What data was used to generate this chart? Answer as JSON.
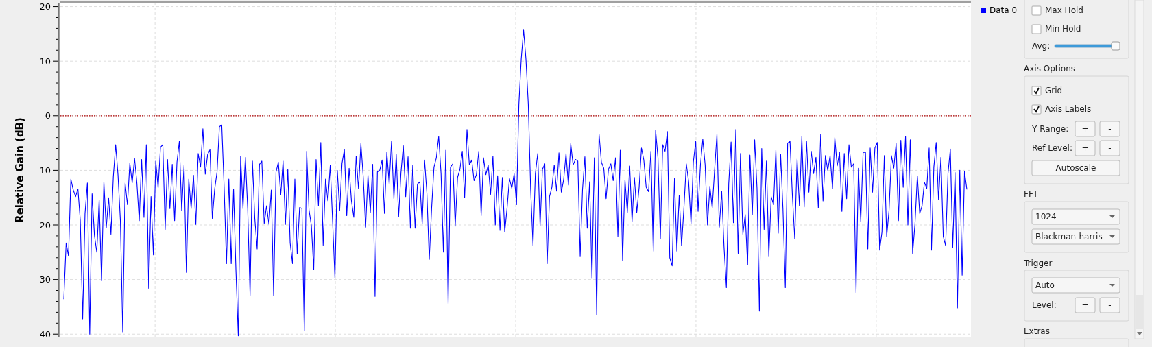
{
  "chart_data": [
    {
      "type": "line",
      "ylabel": "Relative Gain (dB)",
      "ylim": [
        -40.6,
        20.7
      ],
      "yticks": [
        -40,
        -30,
        -20,
        -10,
        0,
        10,
        20
      ],
      "grid": true,
      "legend": "top right",
      "tick_labels": "y",
      "marker": "none",
      "line_style": "solid",
      "ref_lines": [
        {
          "axis": "y",
          "value": 0,
          "color": "#b00000",
          "line_style": "dotted"
        }
      ],
      "categories": [
        null,
        null,
        null,
        null,
        null,
        null,
        null,
        null,
        null,
        null,
        null,
        null,
        null,
        null,
        null,
        null,
        null,
        null,
        null,
        null,
        null,
        null,
        null,
        null,
        null,
        null,
        null,
        null,
        null,
        null,
        null,
        null,
        null,
        null,
        null,
        null,
        null,
        null,
        null,
        null,
        null,
        null,
        null,
        null,
        null,
        null,
        null,
        null,
        null,
        null,
        null,
        null,
        null,
        null,
        null,
        null,
        null,
        null,
        null,
        null,
        null,
        null,
        null,
        null,
        null,
        null,
        null,
        null,
        null,
        null,
        null,
        null,
        null,
        null,
        null,
        null,
        null,
        null,
        null,
        null,
        null,
        null,
        null,
        null,
        null,
        null,
        null,
        null,
        null,
        null,
        null,
        null,
        null,
        null,
        null,
        null,
        null,
        null,
        null,
        null,
        null,
        null,
        null,
        null,
        null,
        null,
        null,
        null,
        null,
        null,
        null,
        null,
        null,
        null,
        null,
        null,
        null,
        null,
        null,
        null,
        null,
        null,
        null,
        null,
        null,
        null,
        null,
        null,
        null,
        null,
        null,
        null,
        null,
        null,
        null,
        null,
        null,
        null,
        null,
        null,
        null,
        null,
        null,
        null,
        null,
        null,
        null,
        null,
        null,
        null,
        null,
        null,
        null,
        null,
        null,
        null,
        null,
        null,
        null,
        null,
        null,
        null,
        null,
        null,
        null,
        null,
        null,
        null,
        null,
        null,
        null,
        null,
        null,
        null,
        null,
        null,
        null,
        null,
        null,
        null,
        null,
        null,
        null,
        null,
        null,
        null,
        null,
        null,
        null,
        null,
        null,
        null,
        null,
        null,
        null,
        null,
        null,
        null,
        null,
        null,
        null,
        null,
        null,
        null,
        null,
        null,
        null,
        null,
        null,
        null,
        null,
        null,
        null,
        null,
        null,
        null,
        null,
        null,
        null,
        null,
        null,
        null,
        null,
        null,
        null,
        null,
        null,
        null,
        null,
        null,
        null,
        null,
        null,
        null,
        null,
        null,
        null,
        null,
        null,
        null,
        null,
        null,
        null,
        null,
        null,
        null,
        null,
        null,
        null,
        null,
        null,
        null,
        null,
        null,
        null,
        null,
        null,
        null,
        null,
        null,
        null,
        null,
        null,
        null,
        null,
        null,
        null,
        null,
        null,
        null,
        null,
        null,
        null,
        null,
        null,
        null,
        null,
        null,
        null,
        null,
        null,
        null,
        null,
        null,
        null,
        null,
        null,
        null,
        null,
        null,
        null,
        null,
        null,
        null,
        null,
        null,
        null,
        null,
        null,
        null,
        null,
        null,
        null,
        null,
        null,
        null,
        null,
        null,
        null,
        null,
        null,
        null,
        null,
        null,
        null,
        null,
        null,
        null,
        null,
        null,
        null,
        null,
        null,
        null,
        null,
        null,
        null,
        null,
        null,
        null,
        null,
        null,
        null,
        null,
        null,
        null,
        null,
        null,
        null,
        null,
        null,
        null,
        null,
        null,
        null,
        null,
        null,
        null,
        null,
        null,
        null,
        null,
        null,
        null,
        null,
        null,
        null,
        null,
        null,
        null,
        null,
        null,
        null,
        null,
        null,
        null,
        null,
        null,
        null,
        null,
        null,
        null,
        null,
        null,
        null,
        null,
        null,
        null,
        null,
        null,
        null,
        null,
        null,
        null
      ],
      "series": [
        {
          "name": "Data 0",
          "color": "#0000ff",
          "values": [
            -33.6,
            -23.3,
            -25.7,
            -11.6,
            -13.6,
            -14.8,
            -13.4,
            -19.2,
            -37.2,
            -17.9,
            -12.3,
            -40,
            -14.3,
            -21.9,
            -25,
            -15.4,
            -30.2,
            -12.1,
            -20.6,
            -15,
            -21.7,
            -11.2,
            -5.3,
            -10.9,
            -19.2,
            -39.6,
            -12.3,
            -16.3,
            -8.7,
            -12.3,
            -7.8,
            -12.3,
            -19.2,
            -8,
            -18.6,
            -5.3,
            -31.6,
            -14.8,
            -25.5,
            -8.3,
            -13.2,
            -5.8,
            -5.3,
            -20.8,
            -8,
            -17,
            -8.9,
            -19.2,
            -8.5,
            -4.7,
            -17.4,
            -9.1,
            -28.7,
            -11.6,
            -17,
            -10.9,
            -19.9,
            -6.9,
            -9.4,
            -2.4,
            -10.7,
            -7.1,
            -6.2,
            -18.8,
            -13.4,
            -10.3,
            -2,
            -1.7,
            -13,
            -27.1,
            -11.6,
            -27.1,
            -13.4,
            -28.2,
            -40.3,
            -7.4,
            -17,
            -7.6,
            -17,
            -32.9,
            -8.3,
            -18.8,
            -24.4,
            -8.9,
            -8.3,
            -19.7,
            -16.5,
            -19.9,
            -13.6,
            -32.9,
            -10.3,
            -8.5,
            -14.5,
            -8.3,
            -19.9,
            -9.8,
            -23.3,
            -27.1,
            -11.6,
            -25.3,
            -16.8,
            -17,
            -39.4,
            -6.5,
            -17.2,
            -20.1,
            -28.2,
            -8,
            -16.5,
            -4.9,
            -23.7,
            -11.6,
            -15.6,
            -9.1,
            -19.2,
            -29.8,
            -10,
            -17.4,
            -8.7,
            -6.2,
            -18.3,
            -9.6,
            -15.6,
            -18.6,
            -7.4,
            -13.4,
            -5.1,
            -11.2,
            -20.4,
            -10.9,
            -17.7,
            -8.9,
            -33.1,
            -10.3,
            -10,
            -8.1,
            -17.9,
            -6.7,
            -12.5,
            -4.7,
            -15.2,
            -7.1,
            -18.5,
            -10.4,
            -5.5,
            -14.8,
            -7.5,
            -20.6,
            -9,
            -20.6,
            -12.5,
            -12.1,
            -19.8,
            -8.1,
            -14.2,
            -26.3,
            -16.9,
            -9.4,
            -7.7,
            -3.8,
            -10.6,
            -25,
            -6.3,
            -34.4,
            -9.4,
            -8.8,
            -20.2,
            -11.3,
            -9.8,
            -6.5,
            -15,
            -2.5,
            -9,
            -8.1,
            -11.9,
            -10.8,
            -6.5,
            -18.3,
            -7.7,
            -10.8,
            -9,
            -14.4,
            -7.4,
            -20,
            -11,
            -21,
            -11.3,
            -21.3,
            -16.9,
            -11.5,
            -13.3,
            -10.6,
            -16.3,
            2.1,
            10.4,
            15.7,
            10.4,
            2.1,
            -13.5,
            -23.8,
            -10.6,
            -6.9,
            -20.2,
            -9.8,
            -8.8,
            -27.1,
            -14.8,
            -13.1,
            -9,
            -13.8,
            -6.8,
            -14,
            -11.7,
            -6.9,
            -12.7,
            -5.1,
            -9,
            -8,
            -8.3,
            -25.8,
            -13.5,
            -7.5,
            -20.6,
            -12.1,
            -29.8,
            -7.7,
            -36.5,
            -3.3,
            -8.5,
            -9.6,
            -15.2,
            -9.8,
            -8.8,
            -11.9,
            -7.7,
            -22.1,
            -6.3,
            -26.5,
            -11.7,
            -17.7,
            -9.2,
            -19.4,
            -11.3,
            -17.7,
            -13.1,
            -5.9,
            -8.1,
            -13.1,
            -13.9,
            -6.5,
            -24.8,
            -2.7,
            -7.7,
            -22.5,
            -5.3,
            -6.5,
            -2.9,
            -26,
            -27.5,
            -11.5,
            -24.8,
            -14.6,
            -23.8,
            -16.9,
            -8.8,
            -12.1,
            -19.8,
            -8.5,
            -4.7,
            -17.5,
            -9,
            -4.3,
            -9,
            -20,
            -12.9,
            -16.9,
            -10,
            -3.4,
            -20.4,
            -13.8,
            -24,
            -31.5,
            -12.5,
            -4.8,
            -19.6,
            -2.5,
            -25.2,
            -6.9,
            -21.7,
            -18.1,
            -27.3,
            -7.2,
            -18.1,
            -4.4,
            -13.3,
            -35.8,
            -6,
            -20.8,
            -8.3,
            -25.8,
            -14.8,
            -16.3,
            -6.3,
            -21.5,
            -7,
            -17.1,
            -31.5,
            -5,
            -4.7,
            -14.6,
            -22.5,
            -7.9,
            -16.5,
            -3.8,
            -16.7,
            -4.7,
            -14,
            -6.5,
            -10.6,
            -7.6,
            -16.9,
            -3.4,
            -15.6,
            -7.3,
            -10,
            -7.3,
            -13.3,
            -4,
            -9.2,
            -6.7,
            -17.5,
            -6.9,
            -15.2,
            -5.3,
            -9.4,
            -8.8,
            -32.4,
            -9.6,
            -19.4,
            -6.7,
            -6.7,
            -24.4,
            -5.9,
            -14,
            -5.9,
            -4.9,
            -24.6,
            -21.3,
            -7.3,
            -22.1,
            -17.3,
            -7.3,
            -9.6,
            -5.1,
            -19.2,
            -4.5,
            -13.1,
            -3.8,
            -20,
            -4.4,
            -25.2,
            -19.8,
            -11,
            -17.9,
            -16.5,
            -12.2,
            -13.3,
            -5.9,
            -24.6,
            -9.4,
            -4.9,
            -15.4,
            -7.6,
            -22.1,
            -23.8,
            -10.6,
            -6.1,
            -24.2,
            -10.4,
            -35.2,
            -10,
            -29.2,
            -10.2,
            -13.5
          ]
        }
      ]
    },
    {
      "type": "other",
      "annotations": [
        "Max Hold",
        "Min Hold",
        "Avg:",
        "Axis Options",
        "Grid",
        "Axis Labels",
        "Y Range:",
        "+",
        "-",
        "Ref Level:",
        "+",
        "-",
        "Autoscale",
        "FFT",
        "1024",
        "Blackman-harris",
        "Trigger",
        "Auto",
        "Level:",
        "+",
        "-",
        "Extras"
      ]
    }
  ]
}
